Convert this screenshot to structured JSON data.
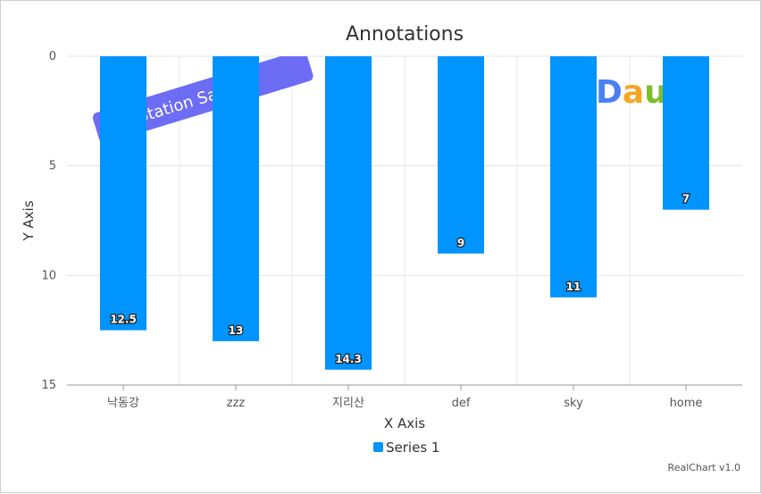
{
  "chart_data": {
    "type": "bar",
    "title": "Annotations",
    "xlabel": "X Axis",
    "ylabel": "Y Axis",
    "categories": [
      "낙동강",
      "zzz",
      "지리산",
      "def",
      "sky",
      "home"
    ],
    "series": [
      {
        "name": "Series 1",
        "values": [
          12.5,
          13,
          14.3,
          9,
          11,
          7
        ],
        "color": "#0094ff"
      }
    ],
    "ylim": [
      0,
      15
    ],
    "y_ticks": [
      0,
      5,
      10,
      15
    ],
    "y_reversed": true,
    "grid": true,
    "legend_position": "bottom"
  },
  "annotations": {
    "text_annotation": {
      "text": "Annotation Sample",
      "color": "#6c6cf5"
    },
    "logo": {
      "name": "daum-logo",
      "text": "Daum"
    }
  },
  "credit": "RealChart v1.0"
}
